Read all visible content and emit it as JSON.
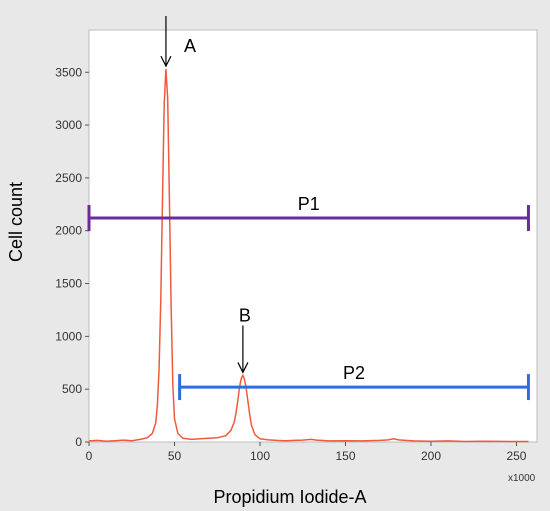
{
  "chart_data": {
    "type": "line",
    "xlabel": "Propidium Iodide-A",
    "ylabel": "Cell count",
    "x_multiplier": "x1000",
    "xlim": [
      0,
      262
    ],
    "ylim": [
      0,
      3900
    ],
    "x_ticks": [
      0,
      50,
      100,
      150,
      200,
      250
    ],
    "y_ticks": [
      0,
      500,
      1000,
      1500,
      2000,
      2500,
      3000,
      3500
    ],
    "grid": false,
    "colors": {
      "line": "#f05a3c",
      "p1": "#6a2c9a",
      "p2": "#2f6fdc",
      "frame": "#bdbdbd",
      "background": "#ffffff",
      "outer": "#e8e8e8"
    },
    "series": [
      {
        "x": [
          0,
          5,
          10,
          15,
          20,
          25,
          30,
          34,
          37,
          39,
          40,
          41,
          42,
          43,
          44,
          45,
          46,
          47,
          48,
          49,
          50,
          52,
          55,
          60,
          65,
          70,
          75,
          80,
          83,
          85,
          86,
          87,
          88,
          89,
          90,
          91,
          92,
          93,
          94,
          95,
          97,
          100,
          105,
          110,
          115,
          120,
          125,
          130,
          133,
          136,
          140,
          150,
          160,
          170,
          175,
          178,
          181,
          185,
          190,
          200,
          210,
          220,
          230,
          240,
          250,
          257
        ],
        "y": [
          10,
          15,
          8,
          12,
          18,
          12,
          25,
          40,
          80,
          180,
          350,
          700,
          1350,
          2300,
          3200,
          3530,
          3250,
          2300,
          1300,
          550,
          220,
          80,
          35,
          25,
          30,
          35,
          40,
          60,
          110,
          190,
          280,
          390,
          520,
          600,
          630,
          590,
          500,
          380,
          260,
          160,
          70,
          30,
          20,
          15,
          12,
          15,
          18,
          25,
          18,
          15,
          10,
          12,
          10,
          15,
          20,
          30,
          20,
          15,
          10,
          8,
          10,
          5,
          8,
          6,
          5,
          5
        ]
      }
    ],
    "gates": [
      {
        "name": "P1",
        "x_start": 0,
        "x_end": 257,
        "y": 2120
      },
      {
        "name": "P2",
        "x_start": 53,
        "x_end": 257,
        "y": 520
      }
    ],
    "annotations": [
      {
        "text": "A",
        "x": 45,
        "y": 3530
      },
      {
        "text": "B",
        "x": 90,
        "y": 630
      }
    ]
  }
}
